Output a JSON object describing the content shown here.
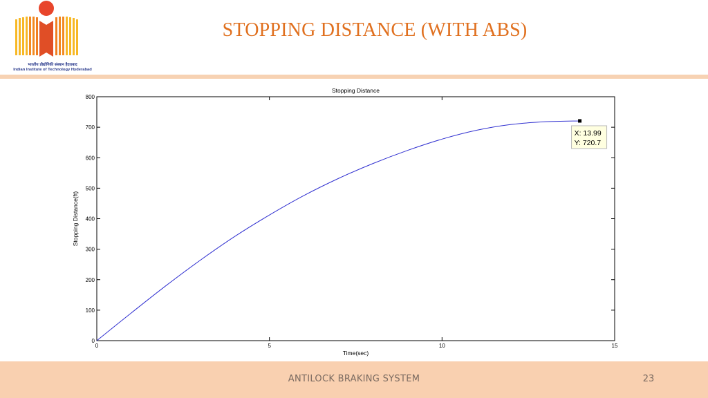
{
  "logo": {
    "hindi_text": "भारतीय प्रौद्योगिकी संस्थान हैदराबाद",
    "english_text": "Indian Institute of Technology Hyderabad",
    "colors": {
      "dot": "#e8452b",
      "bars_yellow": "#f7b825",
      "bars_orange": "#f07f21",
      "book": "#e04e26"
    }
  },
  "slide": {
    "title": "STOPPING DISTANCE (WITH ABS)",
    "title_color": "#e0701f",
    "footer_text": "ANTILOCK BRAKING SYSTEM",
    "page_number": "23"
  },
  "chart_data": {
    "type": "line",
    "title": "Stopping Distance",
    "xlabel": "Time(sec)",
    "ylabel": "Stopping Distance(ft)",
    "xlim": [
      0,
      15
    ],
    "ylim": [
      0,
      800
    ],
    "x_ticks": [
      "0",
      "5",
      "10",
      "15"
    ],
    "y_ticks": [
      "0",
      "100",
      "200",
      "300",
      "400",
      "500",
      "600",
      "700",
      "800"
    ],
    "grid": false,
    "line_color": "#2f2fd0",
    "series": [
      {
        "x": [
          0,
          1,
          2,
          3,
          4,
          5,
          6,
          7,
          8,
          9,
          10,
          11,
          12,
          13,
          13.99
        ],
        "y": [
          0,
          91,
          180,
          264,
          342,
          412,
          476,
          532,
          581,
          624,
          661,
          690,
          709,
          718,
          720.7
        ]
      }
    ],
    "datatip": {
      "x": 13.99,
      "y": 720.7,
      "x_text": "X: 13.99",
      "y_text": "Y: 720.7"
    }
  }
}
